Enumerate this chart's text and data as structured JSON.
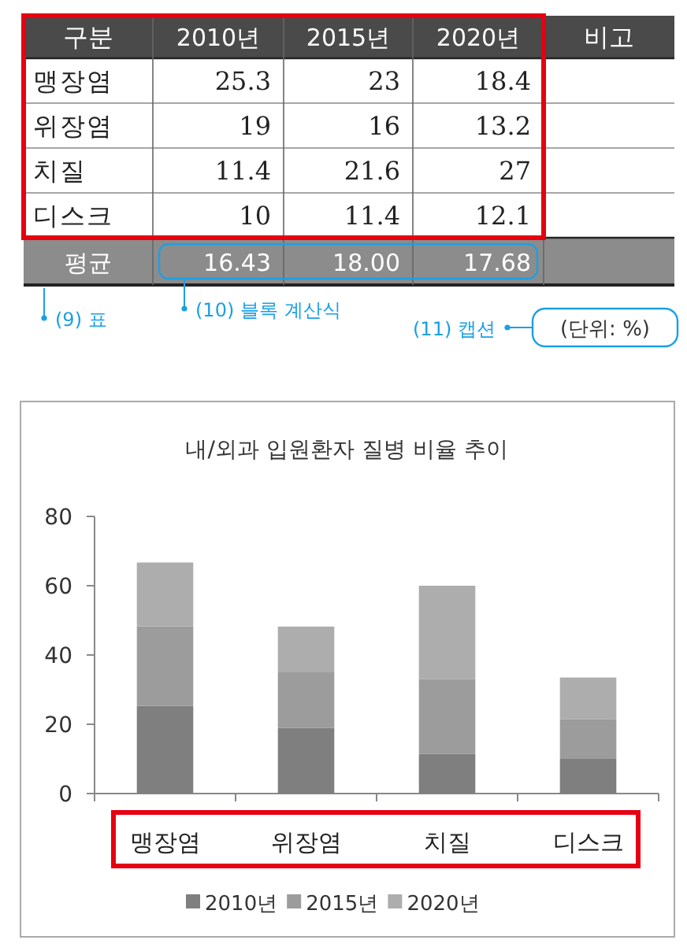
{
  "chart_data": [
    {
      "type": "heatmap",
      "categories": [
        "2010년",
        "2015년",
        "2020년"
      ],
      "y_categories": [
        "맹장염",
        "위장염",
        "치질",
        "디스크",
        "평균"
      ],
      "cells": [
        [
          25.3,
          23,
          18.4
        ],
        [
          19,
          16,
          13.2
        ],
        [
          11.4,
          21.6,
          27
        ],
        [
          10,
          11.4,
          12.1
        ],
        [
          16.43,
          18.0,
          17.68
        ]
      ],
      "cell_labels": [
        [
          "25.3",
          "23",
          "18.4"
        ],
        [
          "19",
          "16",
          "13.2"
        ],
        [
          "11.4",
          "21.6",
          "27"
        ],
        [
          "10",
          "11.4",
          "12.1"
        ],
        [
          "16.43",
          "18.00",
          "17.68"
        ]
      ],
      "annotations": [
        "구분",
        "비고",
        "(9) 표",
        "(10) 블록 계산식",
        "(11) 캡션",
        "(단위: %)"
      ]
    },
    {
      "type": "bar",
      "stacked": true,
      "title": "내/외과 입원환자 질병 비율 추이",
      "categories": [
        "맹장염",
        "위장염",
        "치질",
        "디스크"
      ],
      "series": [
        {
          "name": "2010년",
          "color": "#7f7f7f",
          "values": [
            25.3,
            19,
            11.4,
            10
          ]
        },
        {
          "name": "2015년",
          "color": "#9c9c9c",
          "values": [
            23,
            16,
            21.6,
            11.4
          ]
        },
        {
          "name": "2020년",
          "color": "#adadad",
          "values": [
            18.4,
            13.2,
            27,
            12.1
          ]
        }
      ],
      "ylim": [
        0,
        80
      ],
      "yticks": [
        0,
        20,
        40,
        60,
        80
      ],
      "legend": "bottom"
    }
  ]
}
